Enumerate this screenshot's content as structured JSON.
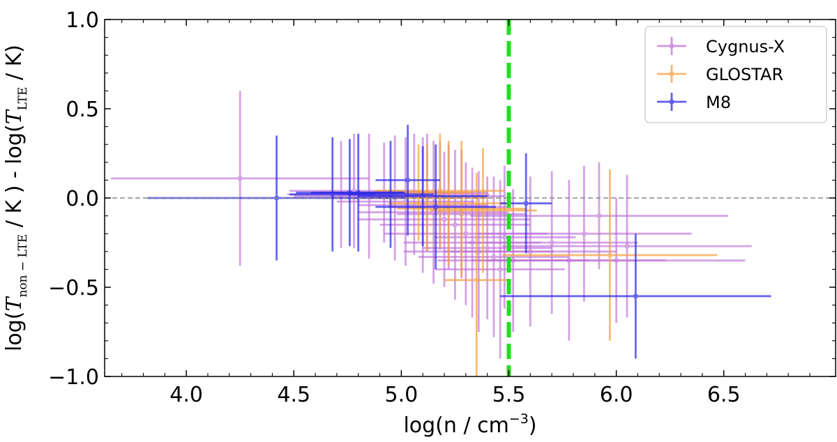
{
  "chart_data": {
    "type": "scatter",
    "title": "",
    "xlabel": "log(n / cm",
    "xlabel_sup": "−3",
    "xlabel_end": ")",
    "ylabel": "log(T_non-LTE / K ) - log(T_LTE / K)",
    "ylabel_parts": {
      "p1": "log(",
      "T1": "T",
      "sub1": "non − LTE",
      "p2": " / K ) - log(",
      "T2": "T",
      "sub2": "LTE",
      "p3": " / K)"
    },
    "xlim": [
      3.62,
      7.02
    ],
    "ylim": [
      -1.0,
      1.0
    ],
    "xticks": [
      4.0,
      4.5,
      5.0,
      5.5,
      6.0,
      6.5
    ],
    "xtick_labels": [
      "4.0",
      "4.5",
      "5.0",
      "5.5",
      "6.0",
      "6.5"
    ],
    "yticks": [
      1.0,
      0.5,
      0.0,
      -0.5,
      -1.0
    ],
    "ytick_labels": [
      "1.0",
      "0.5",
      "0.0",
      "−0.5",
      "−1.0"
    ],
    "reference_lines": {
      "horizontal_dashed_y": 0.0,
      "vertical_dashed_x": 5.5,
      "vertical_color": "#22dd22",
      "horizontal_color": "#888888"
    },
    "legend": {
      "position": "top-right"
    },
    "series": [
      {
        "name": "Cygnus-X",
        "color": "#c071d9",
        "points": [
          {
            "x": 4.25,
            "y": 0.11,
            "xerr": 0.6,
            "yerr": 0.49
          },
          {
            "x": 4.72,
            "y": 0.02,
            "xerr": 0.25,
            "yerr": 0.3
          },
          {
            "x": 4.78,
            "y": 0.04,
            "xerr": 0.3,
            "yerr": 0.32
          },
          {
            "x": 4.85,
            "y": 0.01,
            "xerr": 0.35,
            "yerr": 0.35
          },
          {
            "x": 4.92,
            "y": 0.03,
            "xerr": 0.3,
            "yerr": 0.28
          },
          {
            "x": 4.97,
            "y": 0.0,
            "xerr": 0.3,
            "yerr": 0.35
          },
          {
            "x": 5.02,
            "y": -0.02,
            "xerr": 0.32,
            "yerr": 0.36
          },
          {
            "x": 5.06,
            "y": 0.02,
            "xerr": 0.35,
            "yerr": 0.34
          },
          {
            "x": 5.1,
            "y": -0.04,
            "xerr": 0.3,
            "yerr": 0.38
          },
          {
            "x": 5.12,
            "y": 0.03,
            "xerr": 0.28,
            "yerr": 0.33
          },
          {
            "x": 5.15,
            "y": -0.08,
            "xerr": 0.35,
            "yerr": 0.4
          },
          {
            "x": 5.18,
            "y": 0.01,
            "xerr": 0.3,
            "yerr": 0.3
          },
          {
            "x": 5.2,
            "y": -0.12,
            "xerr": 0.4,
            "yerr": 0.38
          },
          {
            "x": 5.22,
            "y": -0.05,
            "xerr": 0.28,
            "yerr": 0.35
          },
          {
            "x": 5.25,
            "y": -0.15,
            "xerr": 0.35,
            "yerr": 0.42
          },
          {
            "x": 5.28,
            "y": -0.09,
            "xerr": 0.3,
            "yerr": 0.36
          },
          {
            "x": 5.3,
            "y": -0.2,
            "xerr": 0.38,
            "yerr": 0.4
          },
          {
            "x": 5.33,
            "y": -0.25,
            "xerr": 0.32,
            "yerr": 0.42
          },
          {
            "x": 5.36,
            "y": -0.3,
            "xerr": 0.35,
            "yerr": 0.45
          },
          {
            "x": 5.4,
            "y": -0.28,
            "xerr": 0.3,
            "yerr": 0.4
          },
          {
            "x": 5.43,
            "y": -0.33,
            "xerr": 0.35,
            "yerr": 0.45
          },
          {
            "x": 5.46,
            "y": -0.4,
            "xerr": 0.3,
            "yerr": 0.5
          },
          {
            "x": 5.48,
            "y": -0.22,
            "xerr": 0.33,
            "yerr": 0.4
          },
          {
            "x": 5.52,
            "y": -0.35,
            "xerr": 0.35,
            "yerr": 0.4
          },
          {
            "x": 5.6,
            "y": -0.3,
            "xerr": 0.4,
            "yerr": 0.42
          },
          {
            "x": 5.7,
            "y": -0.25,
            "xerr": 0.4,
            "yerr": 0.4
          },
          {
            "x": 5.78,
            "y": -0.35,
            "xerr": 0.45,
            "yerr": 0.45
          },
          {
            "x": 5.85,
            "y": -0.2,
            "xerr": 0.5,
            "yerr": 0.38
          },
          {
            "x": 5.92,
            "y": -0.1,
            "xerr": 0.6,
            "yerr": 0.3
          },
          {
            "x": 6.0,
            "y": -0.35,
            "xerr": 0.6,
            "yerr": 0.35
          },
          {
            "x": 6.05,
            "y": -0.27,
            "xerr": 0.58,
            "yerr": 0.4
          }
        ]
      },
      {
        "name": "GLOSTAR",
        "color": "#f5a040",
        "points": [
          {
            "x": 5.08,
            "y": 0.03,
            "xerr": 0.25,
            "yerr": 0.27
          },
          {
            "x": 5.12,
            "y": 0.0,
            "xerr": 0.28,
            "yerr": 0.3
          },
          {
            "x": 5.18,
            "y": 0.04,
            "xerr": 0.3,
            "yerr": 0.32
          },
          {
            "x": 5.22,
            "y": -0.03,
            "xerr": 0.28,
            "yerr": 0.35
          },
          {
            "x": 5.28,
            "y": -0.06,
            "xerr": 0.3,
            "yerr": 0.38
          },
          {
            "x": 5.35,
            "y": -0.46,
            "xerr": 0.15,
            "yerr": 0.6
          },
          {
            "x": 5.38,
            "y": -0.07,
            "xerr": 0.25,
            "yerr": 0.35
          },
          {
            "x": 5.97,
            "y": -0.32,
            "xerr": 0.5,
            "yerr": 0.48
          }
        ]
      },
      {
        "name": "M8",
        "color": "#2828e8",
        "points": [
          {
            "x": 4.42,
            "y": 0.0,
            "xerr": 0.6,
            "yerr": 0.35
          },
          {
            "x": 4.68,
            "y": 0.02,
            "xerr": 0.2,
            "yerr": 0.32
          },
          {
            "x": 4.76,
            "y": 0.03,
            "xerr": 0.25,
            "yerr": 0.3
          },
          {
            "x": 4.8,
            "y": 0.03,
            "xerr": 0.22,
            "yerr": 0.33
          },
          {
            "x": 4.95,
            "y": 0.02,
            "xerr": 0.2,
            "yerr": 0.3
          },
          {
            "x": 5.03,
            "y": 0.1,
            "xerr": 0.15,
            "yerr": 0.31
          },
          {
            "x": 5.1,
            "y": 0.01,
            "xerr": 0.3,
            "yerr": 0.28
          },
          {
            "x": 5.16,
            "y": -0.05,
            "xerr": 0.28,
            "yerr": 0.35
          },
          {
            "x": 5.58,
            "y": -0.03,
            "xerr": 0.12,
            "yerr": 0.28
          },
          {
            "x": 6.09,
            "y": -0.55,
            "xerr": 0.63,
            "yerr": 0.35
          }
        ]
      }
    ]
  }
}
